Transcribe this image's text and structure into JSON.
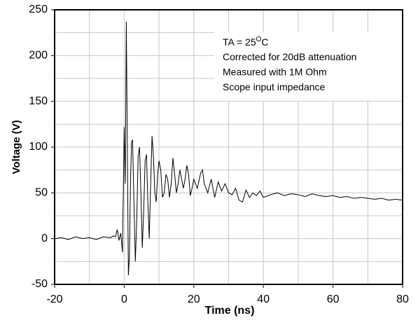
{
  "chart_data": {
    "type": "line",
    "x_label": "Time  (ns)",
    "y_label": "Voltage (V)",
    "annotation": [
      [
        "TA = 25",
        "O",
        "C"
      ],
      "Corrected for 20dB attenuation",
      "Measured with 1M Ohm",
      "Scope input impedance"
    ],
    "xlim": [
      -20,
      80
    ],
    "ylim": [
      -50,
      250
    ],
    "xticks": [
      -20,
      0,
      20,
      40,
      60,
      80
    ],
    "yticks": [
      -50,
      0,
      50,
      100,
      150,
      200,
      250
    ],
    "xgrid": [
      -10,
      0,
      10,
      20,
      30,
      40,
      50,
      60,
      70
    ],
    "ygrid": [
      -25,
      0,
      25,
      50,
      75,
      100,
      125,
      150,
      175,
      200,
      225
    ],
    "grid": true,
    "series": [
      {
        "color": "#000000",
        "x": [
          -20,
          -18,
          -16,
          -14,
          -12,
          -10,
          -8,
          -6,
          -4,
          -3,
          -2.5,
          -2,
          -1.5,
          -1,
          -0.5,
          0,
          0.3,
          0.6,
          0.9,
          1.2,
          1.5,
          1.8,
          2.1,
          2.4,
          2.8,
          3.2,
          3.6,
          4.0,
          4.4,
          4.8,
          5.2,
          5.6,
          6.0,
          6.4,
          6.8,
          7.2,
          7.6,
          8.0,
          8.4,
          8.8,
          9.2,
          9.6,
          10,
          10.5,
          11,
          11.5,
          12,
          12.5,
          13,
          13.5,
          14,
          14.5,
          15,
          15.5,
          16,
          16.5,
          17,
          17.5,
          18,
          18.5,
          19,
          19.5,
          20,
          21,
          22,
          22.5,
          23,
          24,
          25,
          26,
          27,
          28,
          29,
          30,
          31,
          32,
          33,
          34,
          35,
          36,
          37,
          38,
          39,
          40,
          42,
          44,
          46,
          48,
          50,
          52,
          54,
          56,
          58,
          60,
          62,
          64,
          66,
          68,
          70,
          72,
          74,
          76,
          78,
          80
        ],
        "values": [
          0,
          1,
          -1,
          2,
          0,
          1,
          -1,
          2,
          1,
          3,
          2,
          10,
          -2,
          6,
          -15,
          122,
          60,
          237,
          100,
          -40,
          -20,
          60,
          105,
          108,
          40,
          -25,
          20,
          90,
          100,
          50,
          -10,
          30,
          85,
          92,
          40,
          0,
          60,
          112,
          90,
          50,
          40,
          70,
          85,
          75,
          45,
          50,
          70,
          65,
          45,
          60,
          88,
          70,
          50,
          60,
          75,
          65,
          55,
          65,
          80,
          70,
          47,
          55,
          65,
          55,
          72,
          75,
          60,
          50,
          65,
          45,
          62,
          52,
          60,
          50,
          48,
          55,
          42,
          40,
          53,
          45,
          50,
          47,
          52,
          45,
          48,
          50,
          47,
          49,
          48,
          46,
          49,
          47,
          46,
          47,
          45,
          46,
          44,
          45,
          44,
          43,
          44,
          42,
          43,
          42
        ]
      }
    ]
  }
}
